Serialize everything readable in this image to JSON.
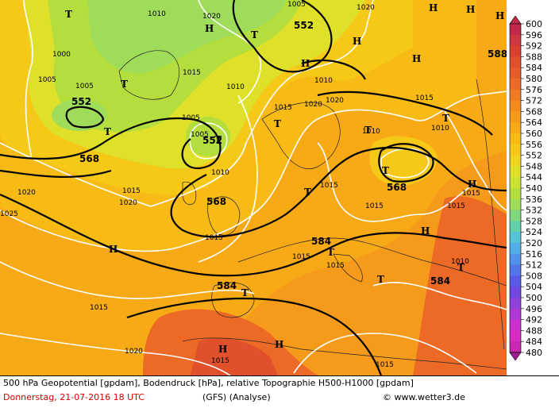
{
  "caption": {
    "line1": "500 hPa Geopotential [gpdam], Bodendruck [hPa], relative Topographie H500-H1000 [gpdam]",
    "date": "Donnerstag, 21-07-2016  18 UTC",
    "model": "(GFS)  (Analyse)",
    "source": "© www.wetter3.de"
  },
  "scale": {
    "labels": [
      "600",
      "596",
      "592",
      "588",
      "584",
      "580",
      "576",
      "572",
      "568",
      "564",
      "560",
      "556",
      "552",
      "548",
      "544",
      "540",
      "536",
      "532",
      "528",
      "524",
      "520",
      "516",
      "512",
      "508",
      "504",
      "500",
      "496",
      "492",
      "488",
      "484",
      "480"
    ],
    "colors": [
      "#c3284b",
      "#cf3640",
      "#d8402f",
      "#e0502a",
      "#e65c28",
      "#ec6a26",
      "#f07a22",
      "#f38a1e",
      "#f59a1a",
      "#f7aa16",
      "#f8ba14",
      "#f6c818",
      "#efd521",
      "#dfe02a",
      "#c9e234",
      "#b3de3e",
      "#9edc5a",
      "#7fd77e",
      "#62d0a8",
      "#52c4d6",
      "#52aee8",
      "#5292ec",
      "#5474ea",
      "#5a5ae6",
      "#7048e0",
      "#9040dc",
      "#b038d6",
      "#cc30d0",
      "#d82cc4",
      "#c828b0",
      "#9c2090"
    ]
  },
  "map": {
    "geopotential_labels": [
      "552",
      "552",
      "552",
      "568",
      "568",
      "568",
      "584",
      "584",
      "584",
      "588"
    ],
    "isobar_labels": [
      "1010",
      "1020",
      "1000",
      "1005",
      "1005",
      "1015",
      "1010",
      "1005",
      "1010",
      "1015",
      "1020",
      "1020",
      "1015",
      "1020",
      "1020",
      "1015",
      "1015",
      "1015",
      "1015",
      "1010",
      "1010",
      "1025",
      "1020",
      "1015",
      "1015",
      "1015",
      "1015",
      "1015",
      "1010",
      "1005",
      "1020",
      "1010",
      "1015",
      "1015",
      "1005"
    ],
    "pressure_systems": [
      "T",
      "H",
      "T",
      "H",
      "T",
      "T",
      "T",
      "T",
      "T",
      "T",
      "H",
      "H",
      "T",
      "H",
      "T",
      "T",
      "H",
      "H",
      "H",
      "H",
      "T",
      "T",
      "H",
      "H",
      "H",
      "T"
    ]
  }
}
